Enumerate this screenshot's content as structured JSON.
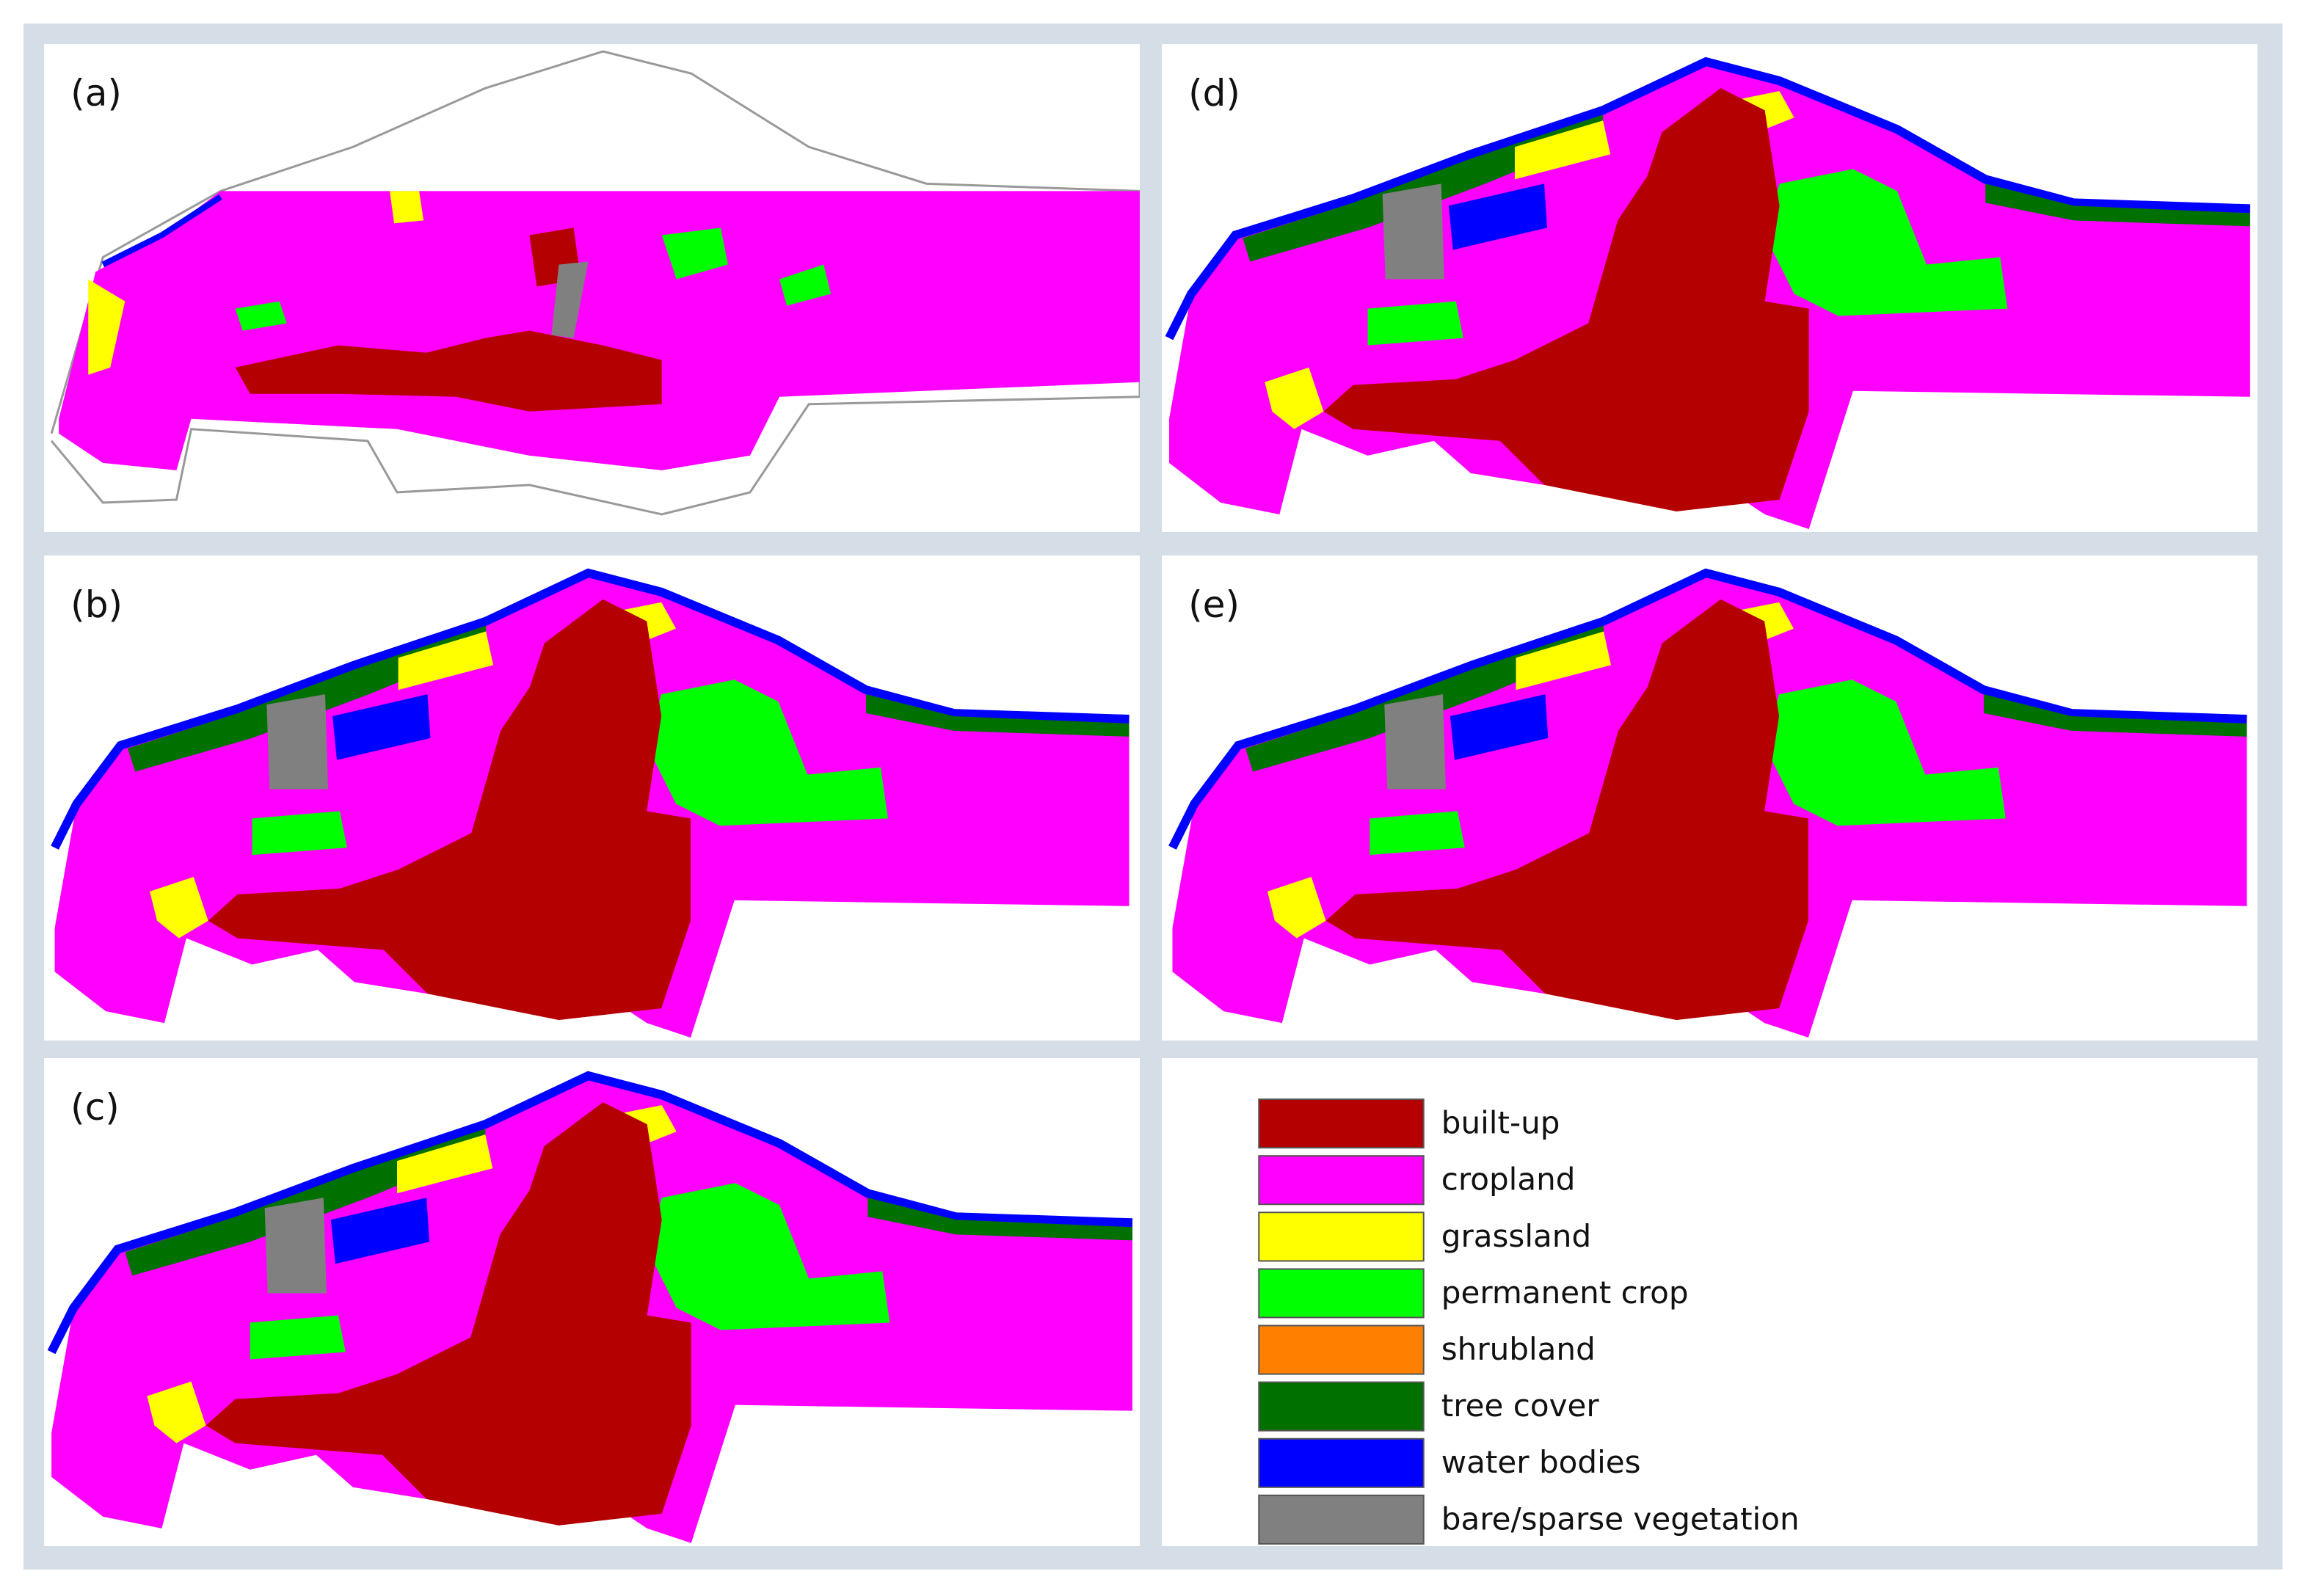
{
  "panels": [
    {
      "label": "(a)"
    },
    {
      "label": "(b)"
    },
    {
      "label": "(c)"
    },
    {
      "label": "(d)"
    },
    {
      "label": "(e)"
    }
  ],
  "legend": {
    "items": [
      {
        "label": "built-up",
        "color": "#b40000"
      },
      {
        "label": "cropland",
        "color": "#ff00ff"
      },
      {
        "label": "grassland",
        "color": "#ffff00"
      },
      {
        "label": "permanent crop",
        "color": "#00ff00"
      },
      {
        "label": "shrubland",
        "color": "#ff8000"
      },
      {
        "label": "tree cover",
        "color": "#007000"
      },
      {
        "label": "water bodies",
        "color": "#0000ff"
      },
      {
        "label": "bare/sparse vegetation",
        "color": "#808080"
      }
    ]
  }
}
